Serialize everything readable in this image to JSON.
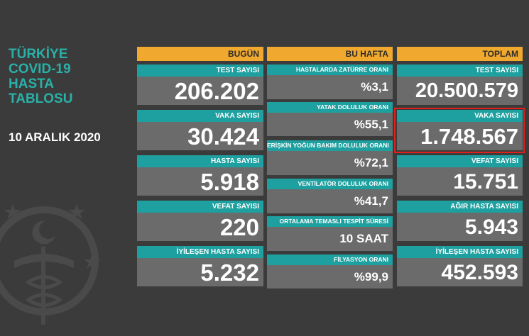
{
  "title_lines": [
    "TÜRKİYE",
    "COVID-19",
    "HASTA",
    "TABLOSU"
  ],
  "date": "10 ARALIK 2020",
  "headers": {
    "today": "BUGÜN",
    "week": "BU HAFTA",
    "total": "TOPLAM"
  },
  "today": [
    {
      "label": "TEST SAYISI",
      "value": "206.202"
    },
    {
      "label": "VAKA SAYISI",
      "value": "30.424"
    },
    {
      "label": "HASTA SAYISI",
      "value": "5.918"
    },
    {
      "label": "VEFAT SAYISI",
      "value": "220"
    },
    {
      "label": "İYİLEŞEN HASTA SAYISI",
      "value": "5.232"
    }
  ],
  "week": [
    {
      "label": "HASTALARDA ZATÜRRE ORANI",
      "value": "%3,1"
    },
    {
      "label": "YATAK DOLULUK ORANI",
      "value": "%55,1"
    },
    {
      "label": "ERİŞKİN YOĞUN BAKIM DOLULUK ORANI",
      "value": "%72,1"
    },
    {
      "label": "VENTİLATÖR DOLULUK ORANI",
      "value": "%41,7"
    },
    {
      "label": "ORTALAMA TEMASLI TESPİT SÜRESİ",
      "value": "10 SAAT"
    },
    {
      "label": "FİLYASYON ORANI",
      "value": "%99,9"
    }
  ],
  "total": [
    {
      "label": "TEST SAYISI",
      "value": "20.500.579"
    },
    {
      "label": "VAKA SAYISI",
      "value": "1.748.567"
    },
    {
      "label": "VEFAT SAYISI",
      "value": "15.751"
    },
    {
      "label": "AĞIR HASTA SAYISI",
      "value": "5.943"
    },
    {
      "label": "İYİLEŞEN HASTA SAYISI",
      "value": "452.593"
    }
  ],
  "colors": {
    "teal": "#1fa0a0",
    "orange": "#f0a92e",
    "highlight": "#e0201a"
  }
}
